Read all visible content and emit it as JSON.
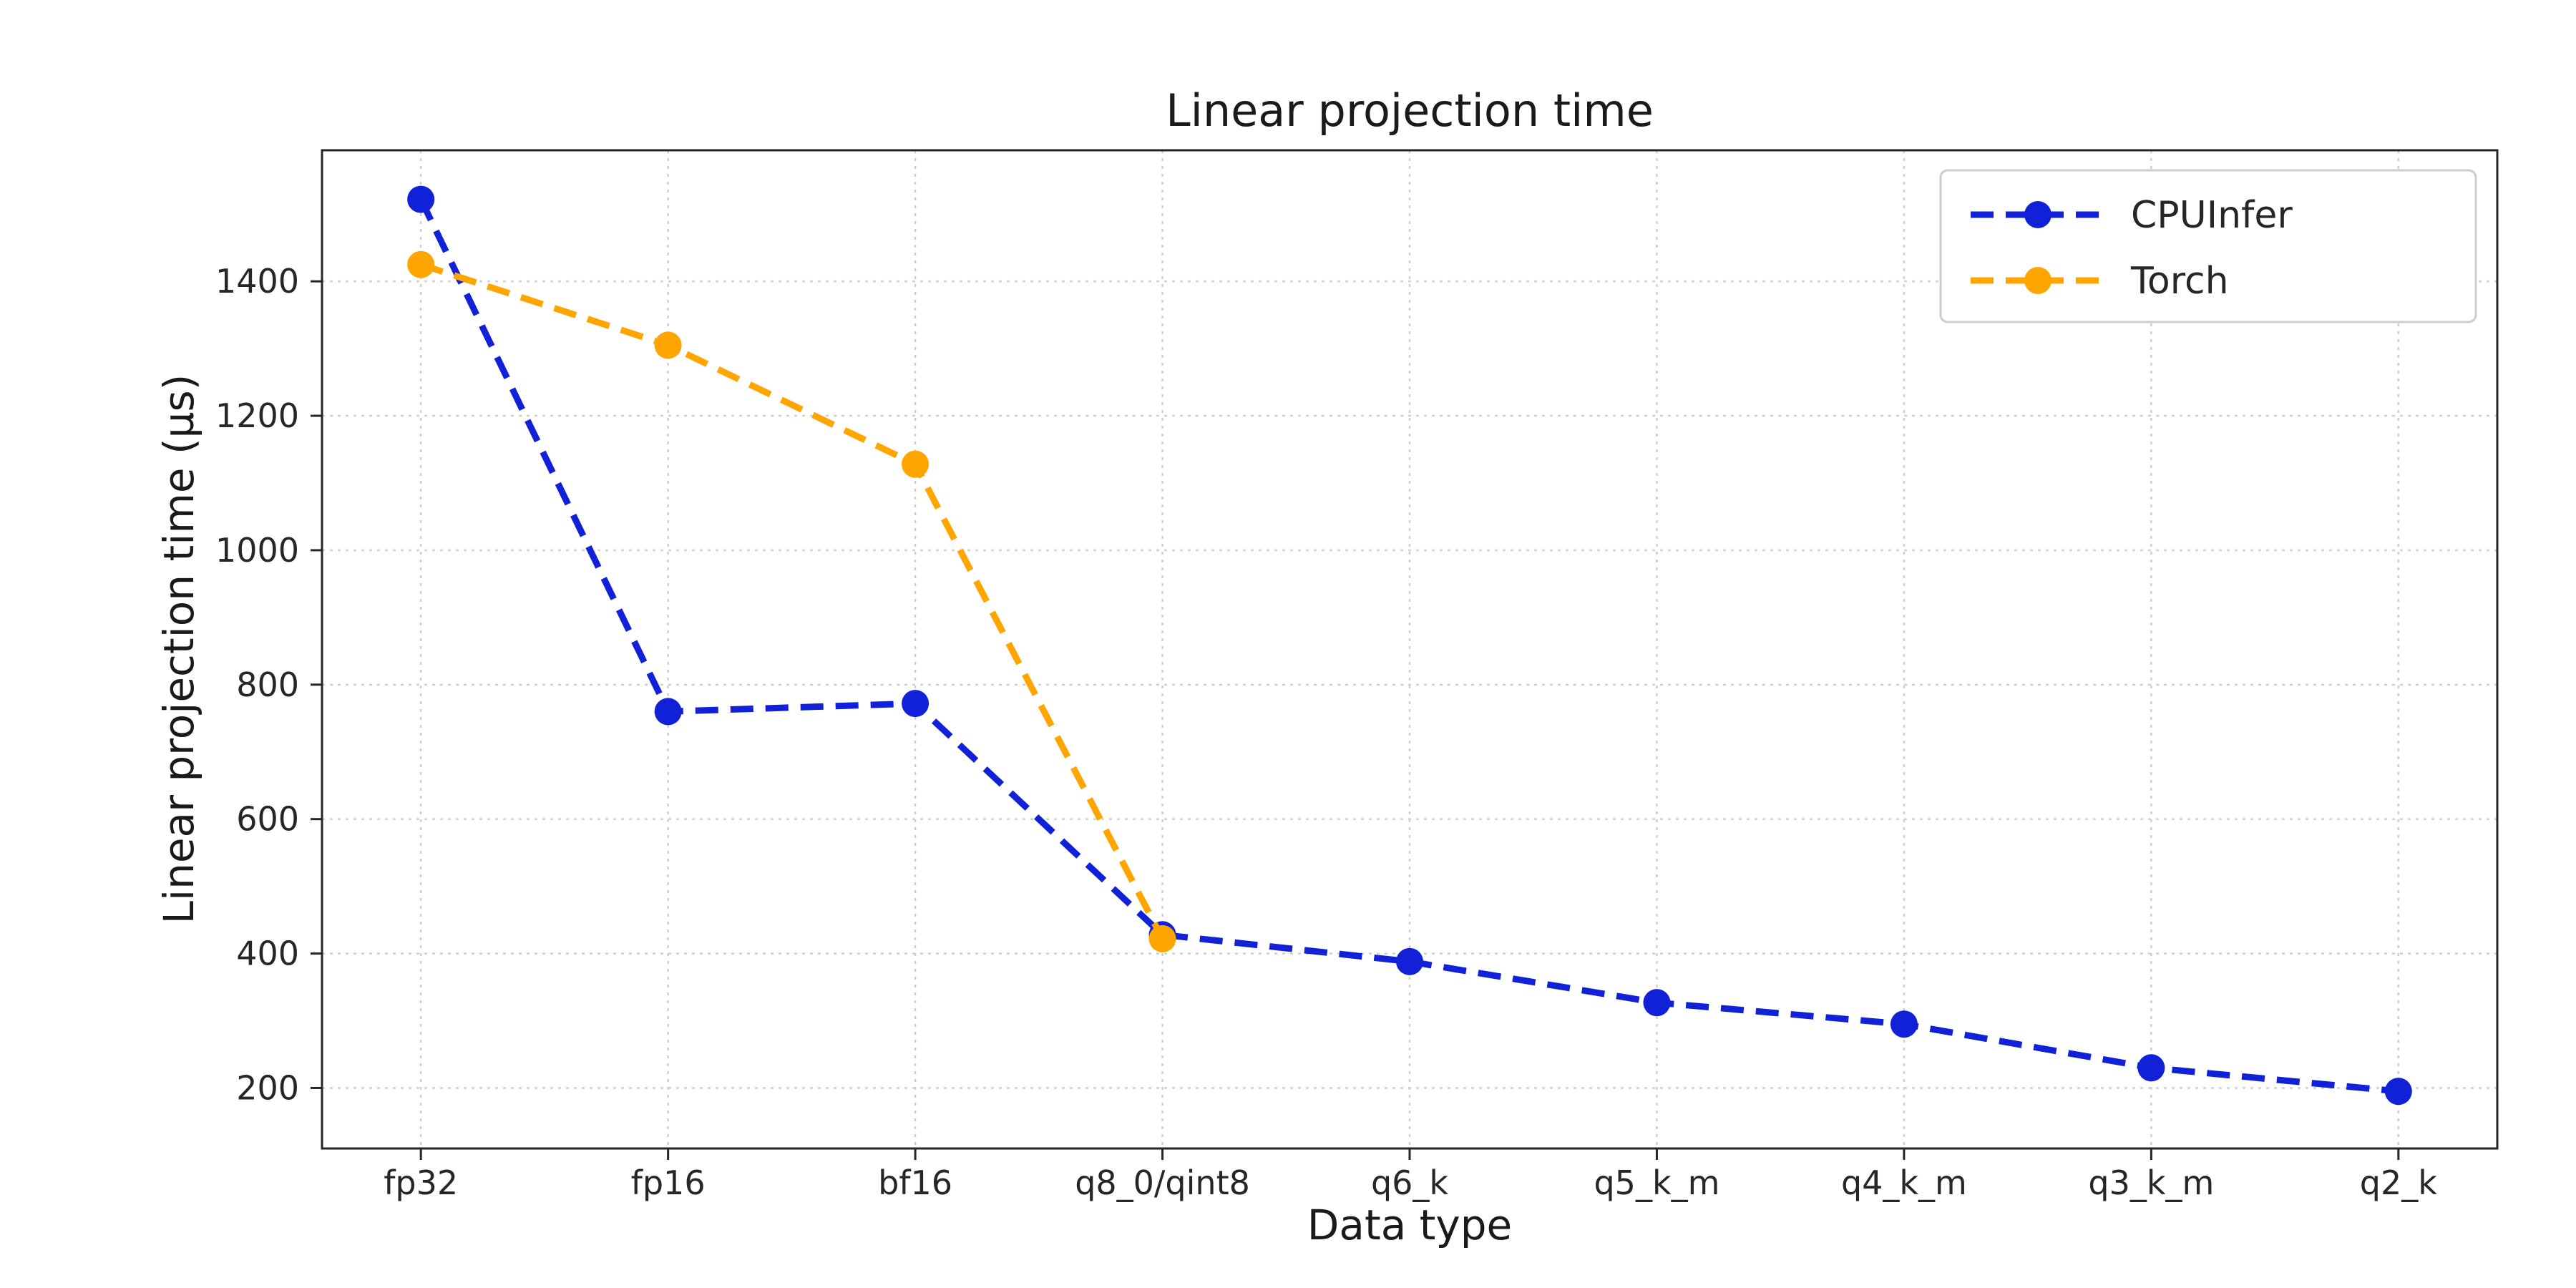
{
  "chart_data": {
    "type": "line",
    "title": "Linear projection time",
    "xlabel": "Data type",
    "ylabel": "Linear projection time (µs)",
    "categories": [
      "fp32",
      "fp16",
      "bf16",
      "q8_0/qint8",
      "q6_k",
      "q5_k_m",
      "q4_k_m",
      "q3_k_m",
      "q2_k"
    ],
    "y_ticks": [
      200,
      400,
      600,
      800,
      1000,
      1200,
      1400
    ],
    "ylim": [
      110,
      1595
    ],
    "grid": true,
    "grid_style": "dashed",
    "legend_position": "top-right",
    "line_style": "dashed",
    "marker": "circle",
    "series": [
      {
        "name": "CPUInfer",
        "color": "#1021d8",
        "values": [
          1522,
          760,
          772,
          428,
          388,
          327,
          295,
          230,
          195
        ]
      },
      {
        "name": "Torch",
        "color": "#ffa500",
        "values": [
          1425,
          1305,
          1128,
          422
        ]
      }
    ]
  }
}
